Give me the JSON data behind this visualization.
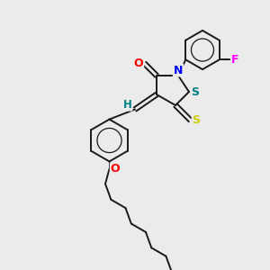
{
  "bg_color": "#ebebeb",
  "bond_color": "#1a1a1a",
  "atom_colors": {
    "O": "#ff0000",
    "N": "#0000ff",
    "S_thioxo": "#cccc00",
    "S_ring": "#008080",
    "F": "#ff00ff",
    "H": "#008080"
  },
  "lw": 1.4,
  "dbo": 0.09
}
